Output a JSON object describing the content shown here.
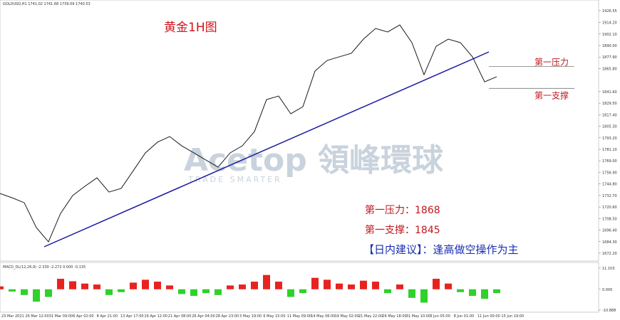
{
  "chart_data": {
    "type": "line",
    "header": "GOLDUSD,H1 1741.02 1741.68 1739.09 1740.53",
    "title": "黄金1H图",
    "resistance": {
      "line_label": "第一压力",
      "label": "第一压力：",
      "value": 1868
    },
    "support": {
      "line_label": "第一支撑",
      "label": "第一支撑：",
      "value": 1845
    },
    "advice": "【日内建议】：逢高做空操作为主",
    "watermark": "Acetop 領峰環球",
    "watermark_sub": "TRADE SMARTER",
    "ylim": [
      1672.2,
      1926.55
    ],
    "yticks": [
      {
        "value": 1926.55,
        "label": "1926.55"
      },
      {
        "value": 1914.2,
        "label": "1914.20"
      },
      {
        "value": 1902.1,
        "label": "1902.10"
      },
      {
        "value": 1890,
        "label": "1890.00"
      },
      {
        "value": 1877.9,
        "label": "1877.90"
      },
      {
        "value": 1865.8,
        "label": "1865.80"
      },
      {
        "value": 1841.6,
        "label": "1841.60"
      },
      {
        "value": 1829.5,
        "label": "1829.50"
      },
      {
        "value": 1817.4,
        "label": "1817.40"
      },
      {
        "value": 1805.3,
        "label": "1805.30"
      },
      {
        "value": 1793.2,
        "label": "1793.20"
      },
      {
        "value": 1781.1,
        "label": "1781.10"
      },
      {
        "value": 1769,
        "label": "1769.00"
      },
      {
        "value": 1756.9,
        "label": "1756.90"
      },
      {
        "value": 1744.8,
        "label": "1744.80"
      },
      {
        "value": 1732.7,
        "label": "1732.70"
      },
      {
        "value": 1720.6,
        "label": "1720.60"
      },
      {
        "value": 1708.5,
        "label": "1708.50"
      },
      {
        "value": 1696.4,
        "label": "1696.40"
      },
      {
        "value": 1684.3,
        "label": "1684.30"
      },
      {
        "value": 1672.2,
        "label": "1672.20"
      }
    ],
    "series": [
      {
        "name": "GOLDUSD",
        "color": "#1a1a1a",
        "values": [
          1734.8,
          1730.3,
          1725.1,
          1699.0,
          1684.1,
          1713.9,
          1732.6,
          1742.3,
          1751.2,
          1736.3,
          1740.1,
          1758.7,
          1777.4,
          1788.6,
          1794.5,
          1784.8,
          1777.4,
          1769.9,
          1762.5,
          1777.4,
          1784.8,
          1799.7,
          1833.3,
          1837.0,
          1818.4,
          1825.8,
          1863.2,
          1874.3,
          1878.1,
          1881.8,
          1896.7,
          1907.9,
          1904.2,
          1911.6,
          1893.0,
          1859.4,
          1889.2,
          1896.7,
          1893.0,
          1878.1,
          1851.9,
          1857.2
        ]
      }
    ],
    "macd": {
      "label": "MACD_DL(12,26,9) -2.330 -2.272 0.000 -0.135",
      "ylim": [
        -10.888,
        11.103
      ],
      "yticks": [
        {
          "value": 11.103,
          "label": "11.103"
        },
        {
          "value": 0,
          "label": "0.000"
        },
        {
          "value": -10.888,
          "label": "-10.888"
        }
      ],
      "values": [
        1.5,
        -1.2,
        -3.0,
        -6.5,
        -4.0,
        5.5,
        4.2,
        3.0,
        2.5,
        -3.0,
        -1.5,
        3.5,
        5.0,
        4.0,
        2.0,
        -2.5,
        -3.5,
        -2.0,
        -3.0,
        2.0,
        2.5,
        4.0,
        7.5,
        4.0,
        -4.0,
        -2.0,
        6.0,
        5.0,
        3.0,
        2.5,
        4.5,
        4.0,
        -2.0,
        2.5,
        -4.5,
        -7.0,
        5.5,
        3.0,
        -1.5,
        -3.5,
        -5.0,
        -2.0
      ]
    },
    "x_labels": [
      "23 Mar 2021",
      "26 Mar 12:00",
      "31 Mar 09:00",
      "6 Apr 02:00",
      "8 Apr 21:00",
      "13 Apr 17:00",
      "16 Apr 12:00",
      "21 Apr 08:00",
      "26 Apr 04:00",
      "28 Apr 23:00",
      "3 May 19:00",
      "6 May 15:00",
      "11 May 09:00",
      "14 May 06:00",
      "19 May 02:00",
      "21 May 22:00",
      "26 May 18:00",
      "31 May 10:00",
      "3 Jun 05:00",
      "8 Jun 01:00",
      "11 Jun 00:00",
      "15 Jun 19:00"
    ]
  }
}
